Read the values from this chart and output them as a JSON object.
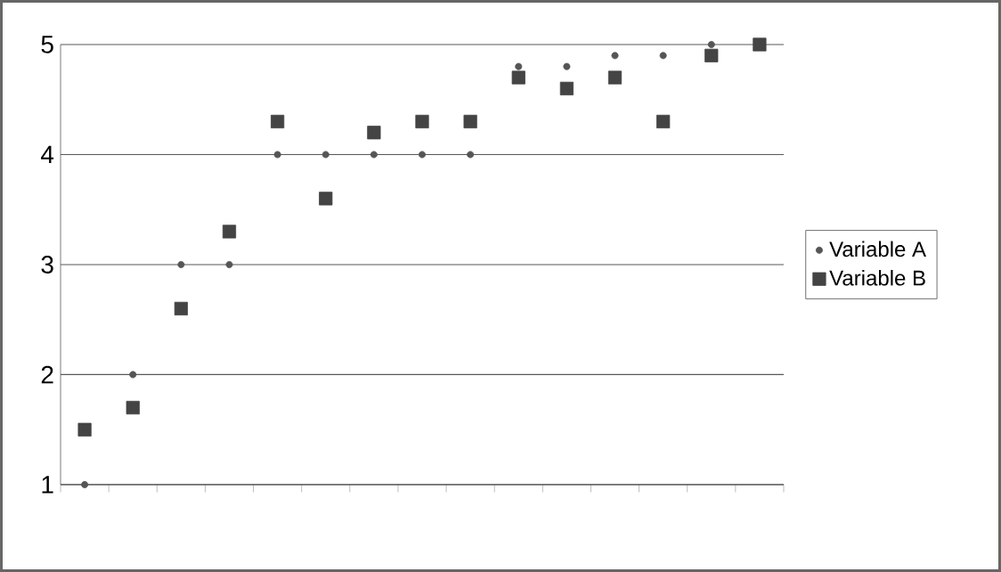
{
  "chart_data": {
    "type": "scatter",
    "categories": [
      null,
      null,
      null,
      null,
      null,
      null,
      null,
      null,
      null,
      null,
      null,
      null,
      null,
      null,
      null
    ],
    "series": [
      {
        "name": "Variable A",
        "color": "#555555",
        "marker": "circle",
        "values": [
          1,
          2,
          3,
          3,
          4,
          4,
          4,
          4,
          4,
          4.8,
          4.8,
          4.9,
          4.9,
          5,
          null
        ]
      },
      {
        "name": "Variable B",
        "color": "#444444",
        "marker": "square",
        "values": [
          1.5,
          1.7,
          2.6,
          3.3,
          4.3,
          3.6,
          4.2,
          4.3,
          4.3,
          4.7,
          4.6,
          4.7,
          4.3,
          4.9,
          5
        ]
      }
    ],
    "ylim": [
      1,
      5
    ],
    "yticks": [
      1,
      2,
      3,
      4,
      5
    ],
    "grid": "y",
    "legend": "right",
    "tick_labels": "y"
  }
}
